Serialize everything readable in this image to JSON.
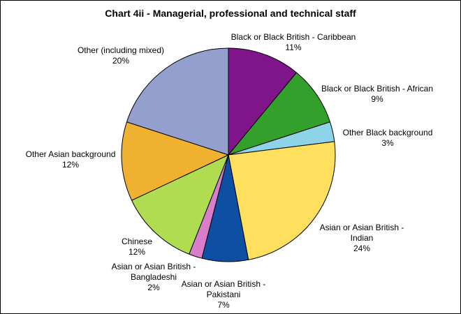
{
  "chart_data": {
    "type": "pie",
    "title": "Chart 4ii - Managerial, professional and technical staff",
    "slices": [
      {
        "label_lines": [
          "Black or Black British - Caribbean"
        ],
        "pct_text": "11%",
        "value": 11,
        "color": "#80148a"
      },
      {
        "label_lines": [
          "Black or Black British - African"
        ],
        "pct_text": "9%",
        "value": 9,
        "color": "#33a02c"
      },
      {
        "label_lines": [
          "Other Black background"
        ],
        "pct_text": "3%",
        "value": 3,
        "color": "#8fd3e8"
      },
      {
        "label_lines": [
          "Asian or Asian British -",
          "Indian"
        ],
        "pct_text": "24%",
        "value": 24,
        "color": "#ffdf5e"
      },
      {
        "label_lines": [
          "Asian or Asian British -",
          "Pakistani"
        ],
        "pct_text": "7%",
        "value": 7,
        "color": "#0c4fa3"
      },
      {
        "label_lines": [
          "Asian or Asian British -",
          "Bangladeshi"
        ],
        "pct_text": "2%",
        "value": 2,
        "color": "#d87ecb"
      },
      {
        "label_lines": [
          "Chinese"
        ],
        "pct_text": "12%",
        "value": 12,
        "color": "#afdc50"
      },
      {
        "label_lines": [
          "Other Asian background"
        ],
        "pct_text": "12%",
        "value": 12,
        "color": "#efb12f"
      },
      {
        "label_lines": [
          "Other (including mixed)"
        ],
        "pct_text": "20%",
        "value": 20,
        "color": "#939fcc"
      }
    ]
  }
}
